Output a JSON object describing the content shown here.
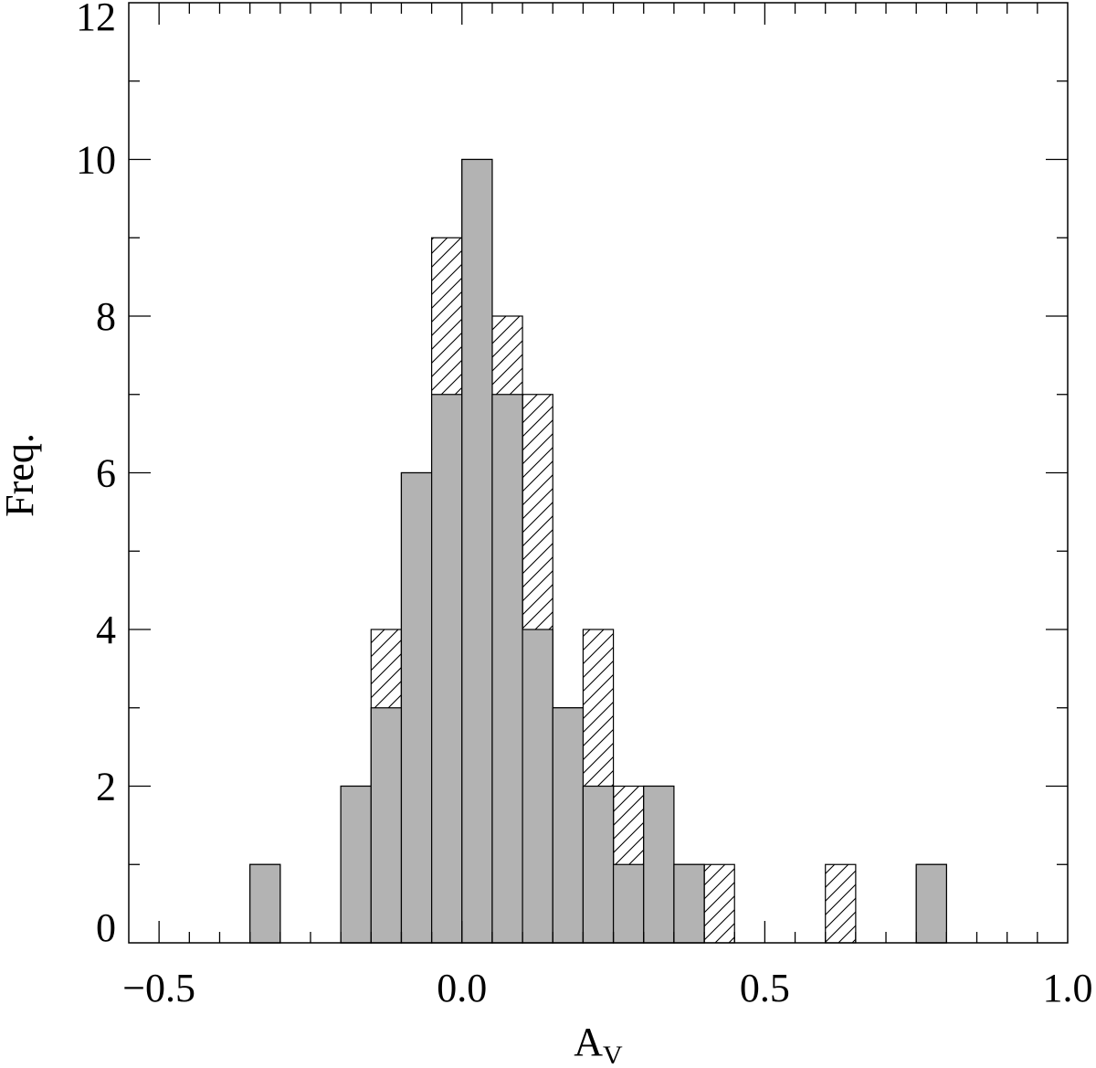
{
  "chart_data": {
    "type": "bar",
    "title": "",
    "xlabel": "A",
    "xlabel_sub": "V",
    "ylabel": "Freq.",
    "xlim": [
      -0.55,
      1.0
    ],
    "ylim": [
      0,
      12
    ],
    "x_ticks": [
      -0.5,
      0.0,
      0.5,
      1.0
    ],
    "x_tick_labels": [
      "−0.5",
      "0.0",
      "0.5",
      "1.0"
    ],
    "y_ticks": [
      0,
      2,
      4,
      6,
      8,
      10,
      12
    ],
    "y_tick_labels": [
      "0",
      "2",
      "4",
      "6",
      "8",
      "10",
      "12"
    ],
    "x_minor_step": 0.05,
    "y_minor_step": 1,
    "grid": false,
    "bin_width": 0.05,
    "bin_starts": [
      -0.35,
      -0.2,
      -0.15,
      -0.1,
      -0.05,
      0.0,
      0.05,
      0.1,
      0.15,
      0.2,
      0.25,
      0.3,
      0.35,
      0.4,
      0.6,
      0.75
    ],
    "series": [
      {
        "style": "filled",
        "color": "#b3b3b3",
        "values": [
          1,
          2,
          3,
          6,
          7,
          10,
          7,
          4,
          3,
          2,
          1,
          2,
          1,
          0,
          0,
          1
        ]
      },
      {
        "style": "hatched",
        "color": "#000000",
        "values": [
          1,
          2,
          4,
          6,
          9,
          10,
          8,
          7,
          3,
          4,
          2,
          2,
          1,
          1,
          1,
          1
        ]
      }
    ]
  }
}
